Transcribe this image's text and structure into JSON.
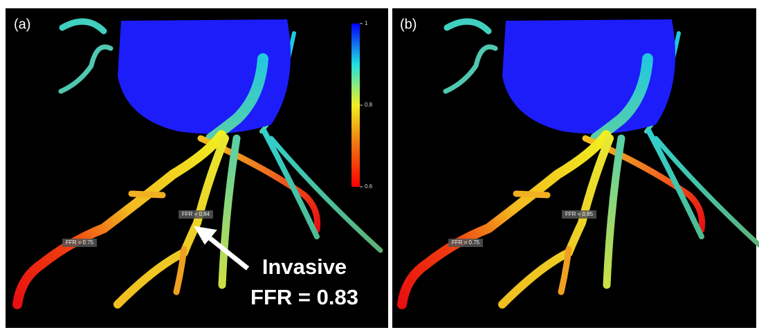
{
  "panels": [
    {
      "label": "(a)",
      "colorbar": {
        "ticks": [
          1,
          0.8,
          0.6
        ]
      },
      "annotations": [
        "FFR = 0.84",
        "FFR = 0.75"
      ],
      "callout": [
        "Invasive",
        "FFR = 0.83"
      ]
    },
    {
      "label": "(b)",
      "annotations": [
        "FFR = 0.85",
        "FFR = 0.75"
      ]
    }
  ]
}
